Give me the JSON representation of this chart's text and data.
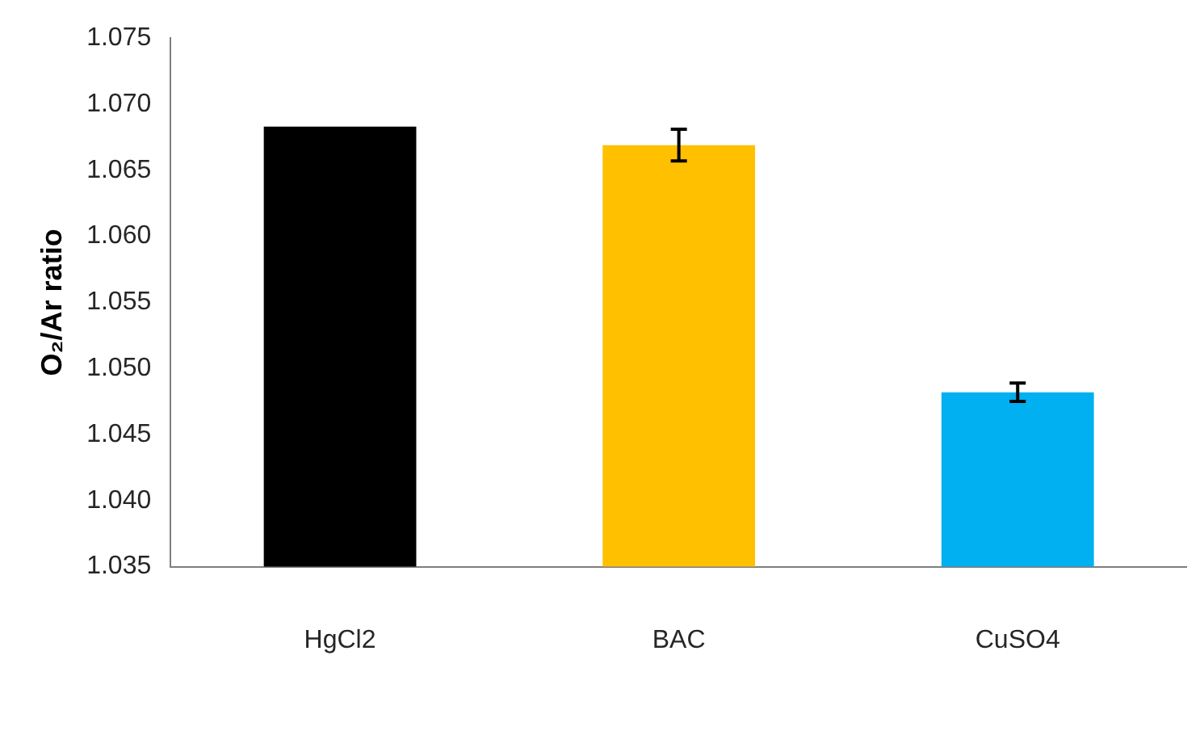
{
  "chart_data": {
    "type": "bar",
    "ylabel": "O₂/Ar ratio",
    "categories": [
      "HgCl2",
      "BAC",
      "CuSO4"
    ],
    "values": [
      1.0683,
      1.0669,
      1.0482
    ],
    "colors": [
      "#000000",
      "#ffc000",
      "#00b0f0"
    ],
    "errors": [
      null,
      0.0012,
      0.0007
    ],
    "ylim": [
      1.035,
      1.075
    ],
    "yticks": [
      1.035,
      {
        "value": 1.04,
        "label": "1.040"
      },
      1.045,
      {
        "value": 1.05,
        "label": "1.050"
      },
      1.055,
      {
        "value": 1.06,
        "label": "1.060"
      },
      1.065,
      {
        "value": 1.07,
        "label": "1.070"
      },
      1.075
    ],
    "grid": false,
    "legend": false
  }
}
